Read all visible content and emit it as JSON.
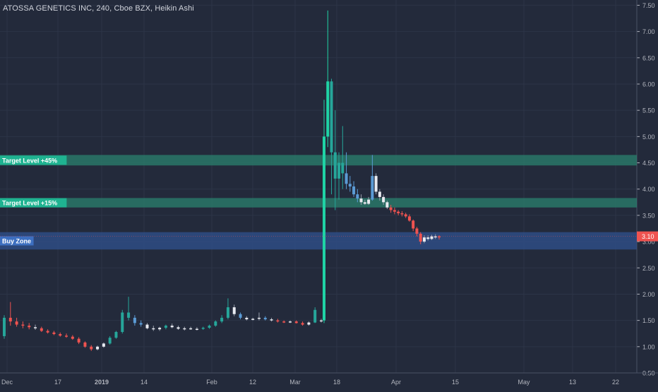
{
  "header": {
    "title": "ATOSSA GENETICS INC, 240, Cboe BZX, Heikin Ashi"
  },
  "colors": {
    "background": "#232a3b",
    "up": "#26a69a",
    "up_bright": "#1fd3a5",
    "down": "#ef5350",
    "doji": "#e8eaf0",
    "blue_candle": "#5b9bd5",
    "target_band": "#2a7d6b",
    "buy_band": "#2f4f8a",
    "grid": "#2c3447",
    "axis_text": "#b2b5be",
    "last_price": "#ef5350"
  },
  "chart_data": {
    "type": "candlestick",
    "title": "ATOSSA GENETICS INC, 240, Cboe BZX, Heikin Ashi",
    "ylim": [
      0.5,
      7.6
    ],
    "y_ticks": [
      "0.50",
      "1.00",
      "1.50",
      "2.00",
      "2.50",
      "3.00",
      "3.50",
      "4.00",
      "4.50",
      "5.00",
      "5.50",
      "6.00",
      "6.50",
      "7.00",
      "7.50"
    ],
    "x_ticks": [
      "Dec",
      "17",
      "2019",
      "14",
      "Feb",
      "12",
      "Mar",
      "18",
      "Apr",
      "15",
      "May",
      "13",
      "22"
    ],
    "last_price": "3.10",
    "zones": [
      {
        "label": "Target Level +45%",
        "low": 4.45,
        "high": 4.65,
        "kind": "target"
      },
      {
        "label": "Target Level +15%",
        "low": 3.65,
        "high": 3.83,
        "kind": "target"
      },
      {
        "label": "Buy Zone",
        "low": 2.85,
        "high": 3.18,
        "kind": "buy"
      }
    ],
    "candles": [
      [
        1.2,
        1.6,
        1.15,
        1.55,
        "up"
      ],
      [
        1.55,
        1.85,
        1.4,
        1.48,
        "down"
      ],
      [
        1.48,
        1.55,
        1.38,
        1.42,
        "down"
      ],
      [
        1.42,
        1.48,
        1.35,
        1.4,
        "down"
      ],
      [
        1.4,
        1.45,
        1.33,
        1.37,
        "down"
      ],
      [
        1.37,
        1.42,
        1.32,
        1.35,
        "doji"
      ],
      [
        1.35,
        1.38,
        1.28,
        1.3,
        "down"
      ],
      [
        1.3,
        1.33,
        1.25,
        1.27,
        "down"
      ],
      [
        1.27,
        1.3,
        1.22,
        1.24,
        "down"
      ],
      [
        1.24,
        1.27,
        1.19,
        1.21,
        "down"
      ],
      [
        1.21,
        1.25,
        1.17,
        1.19,
        "down"
      ],
      [
        1.19,
        1.22,
        1.13,
        1.15,
        "down"
      ],
      [
        1.15,
        1.18,
        1.05,
        1.08,
        "down"
      ],
      [
        1.08,
        1.1,
        0.98,
        1.0,
        "down"
      ],
      [
        1.0,
        1.03,
        0.92,
        0.95,
        "down"
      ],
      [
        0.95,
        1.02,
        0.93,
        1.0,
        "doji"
      ],
      [
        1.0,
        1.08,
        0.98,
        1.06,
        "doji"
      ],
      [
        1.06,
        1.2,
        1.04,
        1.17,
        "up"
      ],
      [
        1.17,
        1.3,
        1.15,
        1.28,
        "up"
      ],
      [
        1.28,
        1.7,
        1.25,
        1.65,
        "up"
      ],
      [
        1.65,
        1.95,
        1.5,
        1.55,
        "up"
      ],
      [
        1.55,
        1.6,
        1.4,
        1.45,
        "blue"
      ],
      [
        1.45,
        1.5,
        1.38,
        1.42,
        "blue"
      ],
      [
        1.42,
        1.45,
        1.33,
        1.35,
        "doji"
      ],
      [
        1.35,
        1.4,
        1.3,
        1.33,
        "doji"
      ],
      [
        1.33,
        1.38,
        1.3,
        1.36,
        "doji"
      ],
      [
        1.36,
        1.42,
        1.33,
        1.4,
        "up"
      ],
      [
        1.4,
        1.44,
        1.35,
        1.37,
        "doji"
      ],
      [
        1.37,
        1.4,
        1.32,
        1.34,
        "doji"
      ],
      [
        1.34,
        1.38,
        1.31,
        1.35,
        "doji"
      ],
      [
        1.35,
        1.38,
        1.32,
        1.33,
        "doji"
      ],
      [
        1.33,
        1.37,
        1.31,
        1.34,
        "doji"
      ],
      [
        1.34,
        1.38,
        1.32,
        1.36,
        "up"
      ],
      [
        1.36,
        1.42,
        1.34,
        1.4,
        "up"
      ],
      [
        1.4,
        1.5,
        1.38,
        1.48,
        "up"
      ],
      [
        1.48,
        1.6,
        1.45,
        1.55,
        "up"
      ],
      [
        1.55,
        1.92,
        1.52,
        1.75,
        "up"
      ],
      [
        1.75,
        1.8,
        1.58,
        1.62,
        "doji"
      ],
      [
        1.62,
        1.65,
        1.52,
        1.55,
        "blue"
      ],
      [
        1.55,
        1.58,
        1.5,
        1.52,
        "doji"
      ],
      [
        1.52,
        1.55,
        1.5,
        1.53,
        "doji"
      ],
      [
        1.53,
        1.65,
        1.5,
        1.55,
        "doji"
      ],
      [
        1.55,
        1.58,
        1.5,
        1.52,
        "blue"
      ],
      [
        1.52,
        1.55,
        1.48,
        1.5,
        "doji"
      ],
      [
        1.5,
        1.53,
        1.46,
        1.48,
        "down"
      ],
      [
        1.48,
        1.5,
        1.45,
        1.47,
        "down"
      ],
      [
        1.47,
        1.5,
        1.45,
        1.48,
        "doji"
      ],
      [
        1.48,
        1.5,
        1.44,
        1.45,
        "down"
      ],
      [
        1.45,
        1.48,
        1.4,
        1.42,
        "down"
      ],
      [
        1.42,
        1.48,
        1.4,
        1.46,
        "doji"
      ],
      [
        1.46,
        1.75,
        1.45,
        1.7,
        "up"
      ],
      [
        1.48,
        1.53,
        1.46,
        1.5,
        "doji"
      ],
      [
        1.5,
        5.7,
        1.45,
        5.0,
        "up_bright"
      ],
      [
        5.0,
        7.4,
        4.8,
        6.05,
        "up_bright"
      ],
      [
        6.05,
        6.1,
        3.9,
        4.7,
        "up"
      ],
      [
        4.7,
        5.5,
        3.6,
        4.2,
        "up"
      ],
      [
        4.2,
        4.7,
        3.8,
        4.5,
        "up"
      ],
      [
        4.5,
        5.2,
        4.0,
        4.3,
        "up"
      ],
      [
        4.3,
        4.7,
        4.0,
        4.1,
        "blue"
      ],
      [
        4.1,
        4.25,
        3.95,
        4.05,
        "blue"
      ],
      [
        4.05,
        4.15,
        3.85,
        3.9,
        "blue"
      ],
      [
        3.9,
        4.0,
        3.75,
        3.82,
        "blue"
      ],
      [
        3.82,
        3.9,
        3.7,
        3.75,
        "doji"
      ],
      [
        3.75,
        3.8,
        3.7,
        3.72,
        "doji"
      ],
      [
        3.72,
        3.85,
        3.7,
        3.8,
        "doji"
      ],
      [
        3.8,
        4.65,
        3.78,
        4.25,
        "blue"
      ],
      [
        4.25,
        4.3,
        3.9,
        3.95,
        "doji"
      ],
      [
        3.95,
        4.0,
        3.78,
        3.85,
        "doji"
      ],
      [
        3.85,
        3.9,
        3.7,
        3.75,
        "doji"
      ],
      [
        3.75,
        3.78,
        3.62,
        3.65,
        "doji"
      ],
      [
        3.65,
        3.7,
        3.55,
        3.6,
        "down"
      ],
      [
        3.6,
        3.65,
        3.52,
        3.57,
        "down"
      ],
      [
        3.57,
        3.6,
        3.5,
        3.54,
        "down"
      ],
      [
        3.54,
        3.58,
        3.48,
        3.52,
        "down"
      ],
      [
        3.52,
        3.55,
        3.45,
        3.48,
        "down"
      ],
      [
        3.48,
        3.52,
        3.38,
        3.4,
        "down"
      ],
      [
        3.4,
        3.42,
        3.2,
        3.25,
        "down"
      ],
      [
        3.25,
        3.28,
        3.1,
        3.15,
        "down"
      ],
      [
        3.15,
        3.18,
        2.95,
        3.0,
        "down"
      ],
      [
        3.0,
        3.12,
        2.97,
        3.08,
        "doji"
      ],
      [
        3.08,
        3.12,
        3.02,
        3.05,
        "doji"
      ],
      [
        3.05,
        3.13,
        3.03,
        3.1,
        "doji"
      ],
      [
        3.1,
        3.14,
        3.05,
        3.08,
        "doji"
      ],
      [
        3.08,
        3.12,
        3.04,
        3.1,
        "down"
      ]
    ]
  }
}
